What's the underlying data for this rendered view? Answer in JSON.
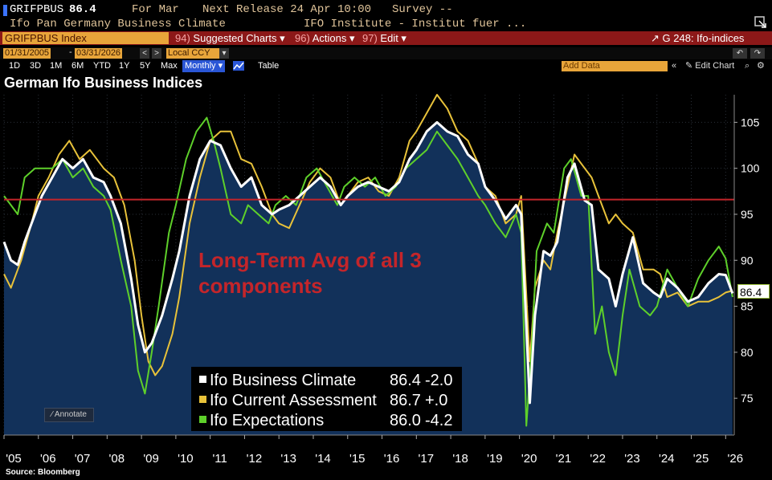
{
  "header": {
    "ticker": "GRIFPBUS",
    "last_price": "86.4",
    "for_period": "For Mar",
    "next_release": "Next Release 24 Apr 10:00",
    "survey": "Survey --",
    "description": "Ifo Pan Germany Business Climate",
    "source_org": "IFO Institute - Institut fuer ..."
  },
  "menubar": {
    "security": "GRIFPBUS Index",
    "suggested": {
      "num": "94)",
      "label": "Suggested Charts ▾"
    },
    "actions": {
      "num": "96)",
      "label": "Actions ▾"
    },
    "edit": {
      "num": "97)",
      "label": "Edit ▾"
    },
    "function": "G 248: Ifo-indices"
  },
  "datebar": {
    "start": "01/31/2005",
    "end": "03/31/2026",
    "currency": "Local CCY"
  },
  "periods": [
    "1D",
    "3D",
    "1M",
    "6M",
    "YTD",
    "1Y",
    "5Y",
    "Max"
  ],
  "frequency": "Monthly ▾",
  "table_label": "Table",
  "add_data_placeholder": "Add Data",
  "edit_chart": "Edit Chart",
  "annotate_label": "Annotate",
  "source_note": "Source: Bloomberg",
  "colors": {
    "climate": "#ffffff",
    "current": "#e8c23a",
    "expectations": "#5ed02a",
    "avg_line": "#c4252a",
    "fill": "#12315a"
  },
  "chart_data": {
    "type": "line",
    "title": "German Ifo Business Indices",
    "ylim": [
      71,
      108
    ],
    "yticks": [
      75,
      80,
      85,
      90,
      95,
      100,
      105
    ],
    "xlim": [
      2005.0,
      2026.25
    ],
    "xtick_labels": [
      "'05",
      "'06",
      "'07",
      "'08",
      "'09",
      "'10",
      "'11",
      "'12",
      "'13",
      "'14",
      "'15",
      "'16",
      "'17",
      "'18",
      "'19",
      "'20",
      "'21",
      "'22",
      "'23",
      "'24",
      "'25",
      "'26"
    ],
    "reference_line": {
      "value": 96.6,
      "label": "Long-Term Avg of all 3 components"
    },
    "series": [
      {
        "name": "Ifo Current Assessment",
        "last": "86.7",
        "change": "+.0",
        "points": [
          [
            2005.0,
            88.5
          ],
          [
            2005.2,
            87
          ],
          [
            2005.5,
            90
          ],
          [
            2005.8,
            94
          ],
          [
            2006.0,
            97
          ],
          [
            2006.3,
            99
          ],
          [
            2006.6,
            101.5
          ],
          [
            2006.9,
            103
          ],
          [
            2007.2,
            101
          ],
          [
            2007.5,
            102
          ],
          [
            2007.9,
            100
          ],
          [
            2008.2,
            99
          ],
          [
            2008.5,
            96
          ],
          [
            2008.8,
            90
          ],
          [
            2009.0,
            84
          ],
          [
            2009.2,
            79
          ],
          [
            2009.4,
            77.5
          ],
          [
            2009.6,
            78.5
          ],
          [
            2009.9,
            82
          ],
          [
            2010.1,
            86
          ],
          [
            2010.4,
            94
          ],
          [
            2010.7,
            99
          ],
          [
            2011.0,
            103
          ],
          [
            2011.3,
            104
          ],
          [
            2011.6,
            104
          ],
          [
            2011.9,
            101
          ],
          [
            2012.2,
            100.5
          ],
          [
            2012.5,
            98
          ],
          [
            2012.8,
            95
          ],
          [
            2013.0,
            94
          ],
          [
            2013.3,
            93.5
          ],
          [
            2013.6,
            96
          ],
          [
            2013.9,
            98.5
          ],
          [
            2014.2,
            100
          ],
          [
            2014.5,
            99
          ],
          [
            2014.8,
            96
          ],
          [
            2015.0,
            97
          ],
          [
            2015.3,
            98.5
          ],
          [
            2015.6,
            99
          ],
          [
            2015.9,
            97.5
          ],
          [
            2016.2,
            97
          ],
          [
            2016.5,
            99
          ],
          [
            2016.8,
            103
          ],
          [
            2017.0,
            104
          ],
          [
            2017.3,
            106
          ],
          [
            2017.6,
            108
          ],
          [
            2017.9,
            106.5
          ],
          [
            2018.2,
            104
          ],
          [
            2018.5,
            103
          ],
          [
            2018.8,
            100.5
          ],
          [
            2019.0,
            98
          ],
          [
            2019.3,
            97
          ],
          [
            2019.6,
            94
          ],
          [
            2019.9,
            95
          ],
          [
            2020.05,
            97
          ],
          [
            2020.3,
            79
          ],
          [
            2020.45,
            87
          ],
          [
            2020.7,
            90
          ],
          [
            2020.9,
            89
          ],
          [
            2021.1,
            93
          ],
          [
            2021.4,
            98
          ],
          [
            2021.6,
            101.5
          ],
          [
            2021.9,
            100
          ],
          [
            2022.1,
            99
          ],
          [
            2022.3,
            97
          ],
          [
            2022.6,
            94
          ],
          [
            2022.8,
            95
          ],
          [
            2023.0,
            94
          ],
          [
            2023.3,
            93
          ],
          [
            2023.6,
            89
          ],
          [
            2023.9,
            89
          ],
          [
            2024.1,
            88.5
          ],
          [
            2024.3,
            86
          ],
          [
            2024.6,
            86.5
          ],
          [
            2024.9,
            85
          ],
          [
            2025.2,
            85.5
          ],
          [
            2025.5,
            85.5
          ],
          [
            2025.8,
            86
          ],
          [
            2026.0,
            86.5
          ],
          [
            2026.2,
            86.7
          ]
        ]
      },
      {
        "name": "Ifo Expectations",
        "last": "86.0",
        "change": "-4.2",
        "points": [
          [
            2005.0,
            97
          ],
          [
            2005.2,
            96
          ],
          [
            2005.4,
            95
          ],
          [
            2005.6,
            99
          ],
          [
            2005.9,
            100
          ],
          [
            2006.1,
            100
          ],
          [
            2006.4,
            100
          ],
          [
            2006.7,
            101
          ],
          [
            2007.0,
            99
          ],
          [
            2007.3,
            100
          ],
          [
            2007.6,
            98
          ],
          [
            2007.9,
            97
          ],
          [
            2008.1,
            95.5
          ],
          [
            2008.4,
            90
          ],
          [
            2008.7,
            85
          ],
          [
            2008.9,
            78
          ],
          [
            2009.1,
            75.5
          ],
          [
            2009.3,
            80
          ],
          [
            2009.5,
            85
          ],
          [
            2009.8,
            93
          ],
          [
            2010.0,
            96
          ],
          [
            2010.3,
            101
          ],
          [
            2010.6,
            104
          ],
          [
            2010.9,
            105.5
          ],
          [
            2011.1,
            103
          ],
          [
            2011.3,
            100
          ],
          [
            2011.6,
            95
          ],
          [
            2011.9,
            94
          ],
          [
            2012.1,
            96
          ],
          [
            2012.4,
            95
          ],
          [
            2012.7,
            94
          ],
          [
            2012.9,
            96
          ],
          [
            2013.2,
            97
          ],
          [
            2013.5,
            96
          ],
          [
            2013.8,
            99
          ],
          [
            2014.1,
            100
          ],
          [
            2014.4,
            98
          ],
          [
            2014.7,
            96
          ],
          [
            2014.9,
            98
          ],
          [
            2015.2,
            99
          ],
          [
            2015.5,
            98
          ],
          [
            2015.8,
            99
          ],
          [
            2016.1,
            97
          ],
          [
            2016.4,
            98
          ],
          [
            2016.7,
            100
          ],
          [
            2017.0,
            101
          ],
          [
            2017.3,
            102
          ],
          [
            2017.6,
            104
          ],
          [
            2017.9,
            102.5
          ],
          [
            2018.2,
            101
          ],
          [
            2018.5,
            99
          ],
          [
            2018.8,
            97
          ],
          [
            2019.0,
            96
          ],
          [
            2019.3,
            94
          ],
          [
            2019.6,
            92.5
          ],
          [
            2019.9,
            95
          ],
          [
            2020.05,
            93
          ],
          [
            2020.2,
            72
          ],
          [
            2020.35,
            80
          ],
          [
            2020.5,
            91
          ],
          [
            2020.8,
            94
          ],
          [
            2021.0,
            93
          ],
          [
            2021.3,
            100
          ],
          [
            2021.5,
            101
          ],
          [
            2021.8,
            97
          ],
          [
            2022.0,
            97
          ],
          [
            2022.2,
            82
          ],
          [
            2022.4,
            85
          ],
          [
            2022.6,
            80
          ],
          [
            2022.8,
            77.5
          ],
          [
            2023.0,
            84
          ],
          [
            2023.2,
            89
          ],
          [
            2023.5,
            85
          ],
          [
            2023.8,
            84
          ],
          [
            2024.0,
            85
          ],
          [
            2024.3,
            89
          ],
          [
            2024.6,
            87
          ],
          [
            2024.9,
            85
          ],
          [
            2025.2,
            88
          ],
          [
            2025.5,
            90
          ],
          [
            2025.8,
            91.5
          ],
          [
            2026.0,
            90.2
          ],
          [
            2026.2,
            86.0
          ]
        ]
      },
      {
        "name": "Ifo Business Climate",
        "last": "86.4",
        "change": "-2.0",
        "points": [
          [
            2005.0,
            92
          ],
          [
            2005.2,
            90
          ],
          [
            2005.4,
            89.5
          ],
          [
            2005.6,
            92
          ],
          [
            2005.9,
            95
          ],
          [
            2006.1,
            97
          ],
          [
            2006.4,
            99
          ],
          [
            2006.7,
            101
          ],
          [
            2007.0,
            100
          ],
          [
            2007.3,
            101
          ],
          [
            2007.6,
            99
          ],
          [
            2007.9,
            98.5
          ],
          [
            2008.1,
            97
          ],
          [
            2008.4,
            94
          ],
          [
            2008.7,
            88
          ],
          [
            2008.9,
            83
          ],
          [
            2009.1,
            80
          ],
          [
            2009.3,
            81
          ],
          [
            2009.6,
            84
          ],
          [
            2009.9,
            88
          ],
          [
            2010.1,
            91
          ],
          [
            2010.4,
            97
          ],
          [
            2010.7,
            101
          ],
          [
            2011.0,
            103
          ],
          [
            2011.3,
            102.5
          ],
          [
            2011.6,
            100
          ],
          [
            2011.9,
            98
          ],
          [
            2012.2,
            99
          ],
          [
            2012.5,
            96
          ],
          [
            2012.8,
            95
          ],
          [
            2013.0,
            95.5
          ],
          [
            2013.3,
            96
          ],
          [
            2013.6,
            97
          ],
          [
            2013.9,
            98
          ],
          [
            2014.2,
            99
          ],
          [
            2014.5,
            98
          ],
          [
            2014.8,
            96
          ],
          [
            2015.0,
            97
          ],
          [
            2015.3,
            98
          ],
          [
            2015.6,
            98.5
          ],
          [
            2015.9,
            98
          ],
          [
            2016.2,
            97.5
          ],
          [
            2016.5,
            98.5
          ],
          [
            2016.8,
            101
          ],
          [
            2017.0,
            102
          ],
          [
            2017.3,
            104
          ],
          [
            2017.6,
            105
          ],
          [
            2017.9,
            104
          ],
          [
            2018.2,
            103.5
          ],
          [
            2018.5,
            101.5
          ],
          [
            2018.8,
            100.5
          ],
          [
            2019.0,
            98
          ],
          [
            2019.3,
            96.5
          ],
          [
            2019.6,
            94.5
          ],
          [
            2019.9,
            96
          ],
          [
            2020.05,
            95
          ],
          [
            2020.3,
            74.5
          ],
          [
            2020.45,
            84
          ],
          [
            2020.7,
            91
          ],
          [
            2020.9,
            90.5
          ],
          [
            2021.1,
            92
          ],
          [
            2021.4,
            99
          ],
          [
            2021.6,
            100.5
          ],
          [
            2021.9,
            96.5
          ],
          [
            2022.1,
            96
          ],
          [
            2022.3,
            89
          ],
          [
            2022.6,
            88
          ],
          [
            2022.8,
            85
          ],
          [
            2023.0,
            88.5
          ],
          [
            2023.3,
            92.5
          ],
          [
            2023.6,
            87.5
          ],
          [
            2023.9,
            86.5
          ],
          [
            2024.1,
            86
          ],
          [
            2024.3,
            88
          ],
          [
            2024.6,
            87
          ],
          [
            2024.9,
            85.5
          ],
          [
            2025.2,
            86
          ],
          [
            2025.5,
            87.5
          ],
          [
            2025.8,
            88.5
          ],
          [
            2026.0,
            88.4
          ],
          [
            2026.2,
            86.4
          ]
        ]
      }
    ]
  }
}
